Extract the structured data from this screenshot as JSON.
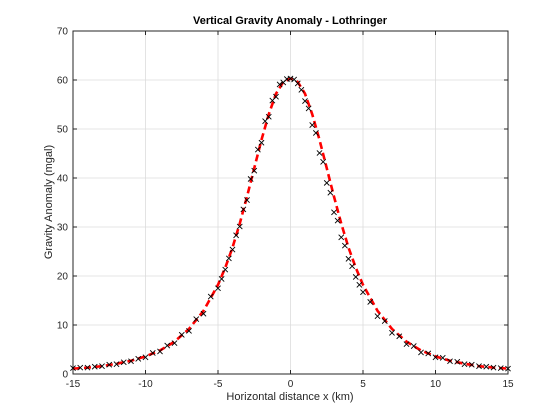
{
  "chart_data": {
    "type": "line",
    "title": "Vertical Gravity Anomaly - Lothringer",
    "xlabel": "Horizontal distance x (km)",
    "ylabel": "Gravity Anomaly (mgal)",
    "xlim": [
      -15,
      15
    ],
    "ylim": [
      0,
      70
    ],
    "x_ticks": [
      -15,
      -10,
      -5,
      0,
      5,
      10,
      15
    ],
    "y_ticks": [
      0,
      10,
      20,
      30,
      40,
      50,
      60,
      70
    ],
    "grid": true,
    "legend": null,
    "colors": {
      "model": "#ff0000",
      "observed": "#000000",
      "grid": "#dcdcdc",
      "axes": "#262626"
    },
    "series": [
      {
        "style": "red dashed line",
        "x": [
          -15,
          -14,
          -13,
          -12,
          -11,
          -10,
          -9,
          -8,
          -7,
          -6,
          -5,
          -4.5,
          -4,
          -3.5,
          -3,
          -2.5,
          -2,
          -1.5,
          -1,
          -0.5,
          0,
          0.5,
          1,
          1.5,
          2,
          2.5,
          3,
          3.5,
          4,
          4.5,
          5,
          6,
          7,
          8,
          9,
          10,
          11,
          12,
          13,
          14,
          15
        ],
        "values": [
          1.1,
          1.3,
          1.6,
          2.1,
          2.7,
          3.6,
          4.8,
          6.6,
          9.2,
          12.9,
          18.2,
          21.7,
          25.8,
          30.7,
          36.2,
          42.0,
          47.8,
          53.0,
          57.2,
          59.6,
          60.3,
          59.6,
          57.2,
          53.0,
          47.8,
          42.0,
          36.2,
          30.7,
          25.8,
          21.7,
          18.2,
          12.9,
          9.2,
          6.6,
          4.8,
          3.6,
          2.7,
          2.1,
          1.6,
          1.3,
          1.1
        ]
      },
      {
        "style": "black x markers",
        "x": [
          -15,
          -14.5,
          -14,
          -13.5,
          -13,
          -12.5,
          -12,
          -11.5,
          -11,
          -10.5,
          -10,
          -9.5,
          -9,
          -8.5,
          -8,
          -7.5,
          -7,
          -6.5,
          -6,
          -5.5,
          -5,
          -4.75,
          -4.5,
          -4.25,
          -4,
          -3.75,
          -3.5,
          -3.25,
          -3,
          -2.75,
          -2.5,
          -2.25,
          -2,
          -1.75,
          -1.5,
          -1.25,
          -1,
          -0.75,
          -0.5,
          -0.25,
          0,
          0.25,
          0.5,
          0.75,
          1,
          1.25,
          1.5,
          1.75,
          2,
          2.25,
          2.5,
          2.75,
          3,
          3.25,
          3.5,
          3.75,
          4,
          4.25,
          4.5,
          4.75,
          5,
          5.5,
          6,
          6.5,
          7,
          7.5,
          8,
          8.5,
          9,
          9.5,
          10,
          10.5,
          11,
          11.5,
          12,
          12.5,
          13,
          13.5,
          14,
          14.5,
          15
        ],
        "values": [
          1.2,
          1.3,
          1.3,
          1.5,
          1.6,
          1.9,
          2.0,
          2.4,
          2.6,
          3.1,
          3.4,
          4.3,
          4.6,
          5.8,
          6.3,
          8.0,
          8.8,
          11.2,
          12.3,
          15.8,
          17.5,
          19.4,
          21.3,
          23.6,
          25.4,
          28.3,
          30.1,
          33.6,
          35.5,
          39.8,
          41.5,
          45.8,
          47.2,
          51.6,
          52.5,
          55.8,
          56.6,
          59.1,
          59.5,
          60.2,
          60.3,
          60.1,
          59.3,
          58.0,
          55.7,
          54.2,
          50.8,
          49.2,
          45.1,
          43.3,
          39.0,
          37.0,
          33.0,
          31.3,
          27.9,
          26.2,
          23.5,
          22.0,
          19.8,
          18.2,
          16.7,
          14.7,
          11.8,
          10.8,
          8.4,
          7.7,
          6.1,
          5.7,
          4.4,
          4.2,
          3.4,
          3.3,
          2.6,
          2.5,
          2.0,
          1.9,
          1.6,
          1.5,
          1.3,
          1.2,
          1.1
        ]
      }
    ]
  }
}
